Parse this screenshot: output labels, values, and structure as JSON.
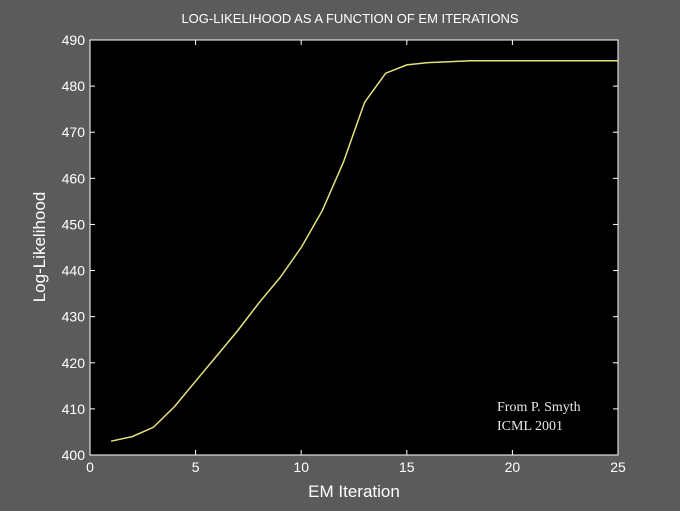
{
  "chart_data": {
    "type": "line",
    "title": "LOG-LIKELIHOOD AS A FUNCTION OF EM ITERATIONS",
    "xlabel": "EM Iteration",
    "ylabel": "Log-Likelihood",
    "xlim": [
      0,
      25
    ],
    "ylim": [
      400,
      490
    ],
    "xticks": [
      0,
      5,
      10,
      15,
      20,
      25
    ],
    "yticks": [
      400,
      410,
      420,
      430,
      440,
      450,
      460,
      470,
      480,
      490
    ],
    "grid": false,
    "background": "#000000",
    "figure_background": "#5b5b5b",
    "line_color": "#e6e27a",
    "series": [
      {
        "x": [
          1,
          2,
          3,
          4,
          5,
          6,
          7,
          8,
          9,
          10,
          11,
          12,
          13,
          14,
          15,
          16,
          17,
          18,
          19,
          20,
          21,
          22,
          23,
          24,
          25
        ],
        "y": [
          403,
          404,
          406,
          410.5,
          416,
          421.5,
          427,
          433,
          438.5,
          445,
          453,
          463.5,
          476.5,
          482.8,
          484.6,
          485.1,
          485.3,
          485.5,
          485.5,
          485.5,
          485.5,
          485.5,
          485.5,
          485.5,
          485.5
        ]
      }
    ],
    "annotation": [
      "From P. Smyth",
      "ICML 2001"
    ]
  }
}
